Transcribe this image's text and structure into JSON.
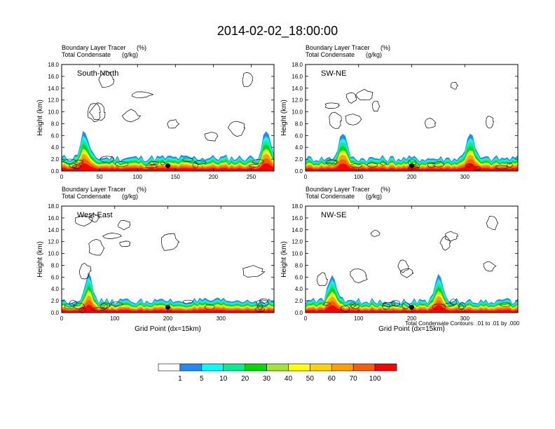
{
  "title": "2014-02-02_18:00:00",
  "panel_header": {
    "line1_left": "Boundary Layer Tracer",
    "line1_unit": "(%)",
    "line2_left": "Total Condensate",
    "line2_unit": "(g/kg)"
  },
  "contour_note": "Total Condensate Contours: .01 to .01 by .000",
  "colorbar": {
    "labels": [
      "1",
      "5",
      "10",
      "20",
      "30",
      "40",
      "50",
      "60",
      "70",
      "100"
    ],
    "colors": [
      "#ffffff",
      "#1e8cff",
      "#00ffff",
      "#00f08c",
      "#00dc00",
      "#a0e632",
      "#ffff00",
      "#ffd200",
      "#ffa000",
      "#ff5a0a",
      "#ff0000"
    ]
  },
  "chart_data": [
    {
      "type": "contour",
      "panel": "South-North",
      "xlabel": "",
      "ylabel": "Height (km)",
      "xlim": [
        0,
        280
      ],
      "ylim": [
        0,
        18
      ],
      "xticks": [
        0,
        50,
        100,
        150,
        200,
        250
      ],
      "yticks": [
        "0.0",
        "2.0",
        "4.0",
        "6.0",
        "8.0",
        "10.0",
        "12.0",
        "14.0",
        "16.0",
        "18.0"
      ],
      "marker_x": 140,
      "plume_centers": [
        30,
        270
      ],
      "tracer_top_km": 2.5
    },
    {
      "type": "contour",
      "panel": "SW-NE",
      "xlabel": "",
      "ylabel": "Height (km)",
      "xlim": [
        0,
        400
      ],
      "ylim": [
        0,
        18
      ],
      "xticks": [
        0,
        100,
        200,
        300
      ],
      "yticks": [
        "0.0",
        "2.0",
        "4.0",
        "6.0",
        "8.0",
        "10.0",
        "12.0",
        "14.0",
        "16.0",
        "18.0"
      ],
      "marker_x": 200,
      "plume_centers": [
        70,
        310
      ],
      "tracer_top_km": 2.4
    },
    {
      "type": "contour",
      "panel": "West-East",
      "xlabel": "Grid Point (dx=15km)",
      "ylabel": "Height (km)",
      "xlim": [
        0,
        400
      ],
      "ylim": [
        0,
        18
      ],
      "xticks": [
        0,
        100,
        200,
        300
      ],
      "yticks": [
        "0.0",
        "2.0",
        "4.0",
        "6.0",
        "8.0",
        "10.0",
        "12.0",
        "14.0",
        "16.0",
        "18.0"
      ],
      "marker_x": 200,
      "plume_centers": [
        50
      ],
      "tracer_top_km": 2.2
    },
    {
      "type": "contour",
      "panel": "NW-SE",
      "xlabel": "Grid Point (dx=15km)",
      "ylabel": "Height (km)",
      "xlim": [
        0,
        400
      ],
      "ylim": [
        0,
        18
      ],
      "xticks": [
        0,
        100,
        200,
        300
      ],
      "yticks": [
        "0.0",
        "2.0",
        "4.0",
        "6.0",
        "8.0",
        "10.0",
        "12.0",
        "14.0",
        "16.0",
        "18.0"
      ],
      "marker_x": 200,
      "plume_centers": [
        50,
        250
      ],
      "tracer_top_km": 2.2
    }
  ]
}
